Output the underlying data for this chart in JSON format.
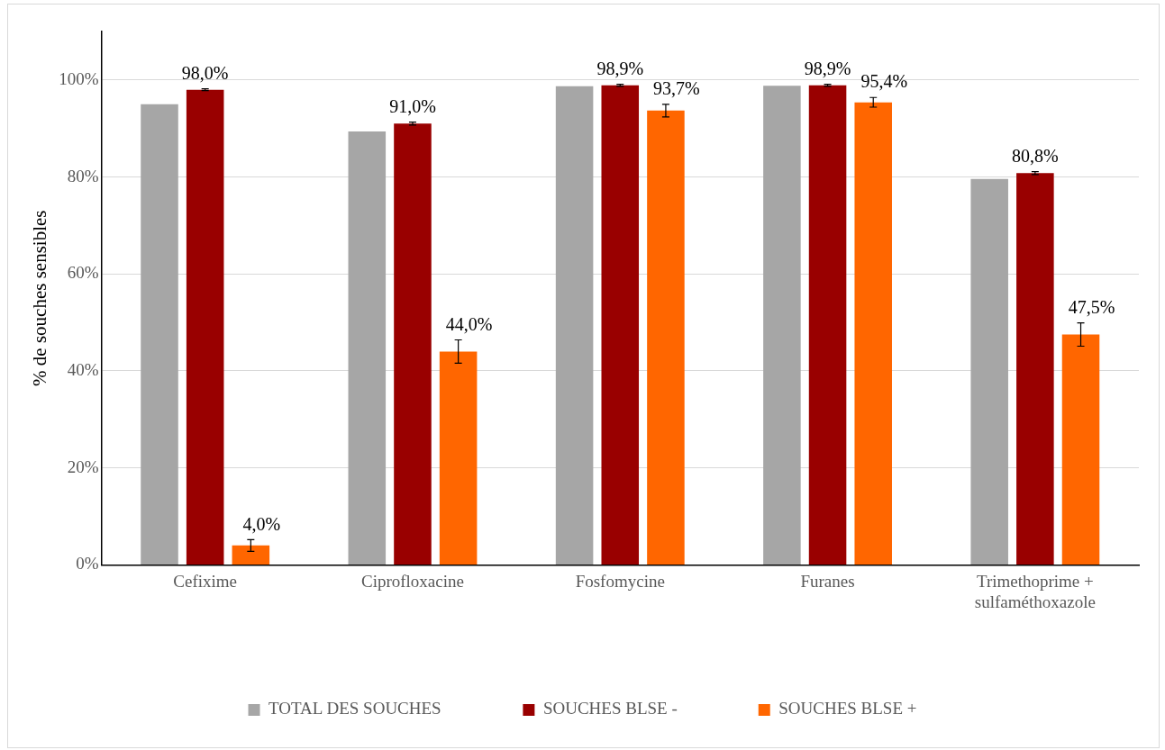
{
  "chart_data": {
    "type": "bar",
    "ylabel": "% de souches sensibles",
    "categories": [
      "Cefixime",
      "Ciprofloxacine",
      "Fosfomycine",
      "Furanes",
      "Trimethoprime +\nsulfaméthoxazole"
    ],
    "series": [
      {
        "name": "TOTAL DES SOUCHES",
        "color": "#a6a6a6",
        "values": [
          95.0,
          89.4,
          98.7,
          98.8,
          79.6
        ]
      },
      {
        "name": "SOUCHES BLSE -",
        "color": "#990000",
        "values": [
          98.0,
          91.0,
          98.9,
          98.9,
          80.8
        ],
        "errors": [
          0.2,
          0.3,
          0.2,
          0.2,
          0.3
        ],
        "value_labels": [
          "98,0%",
          "91,0%",
          "98,9%",
          "98,9%",
          "80,8%"
        ]
      },
      {
        "name": "SOUCHES BLSE +",
        "color": "#ff6600",
        "values": [
          4.0,
          44.0,
          93.7,
          95.4,
          47.5
        ],
        "errors": [
          1.2,
          2.4,
          1.3,
          1.0,
          2.4
        ],
        "value_labels": [
          "4,0%",
          "44,0%",
          "93,7%",
          "95,4%",
          "47,5%"
        ]
      }
    ],
    "ylim": [
      0,
      110
    ],
    "yticks": [
      {
        "value": 0,
        "label": "0%"
      },
      {
        "value": 20,
        "label": "20%"
      },
      {
        "value": 40,
        "label": "40%"
      },
      {
        "value": 60,
        "label": "60%"
      },
      {
        "value": 80,
        "label": "80%"
      },
      {
        "value": 100,
        "label": "100%"
      }
    ],
    "grid": "y",
    "legend": "bottom"
  }
}
